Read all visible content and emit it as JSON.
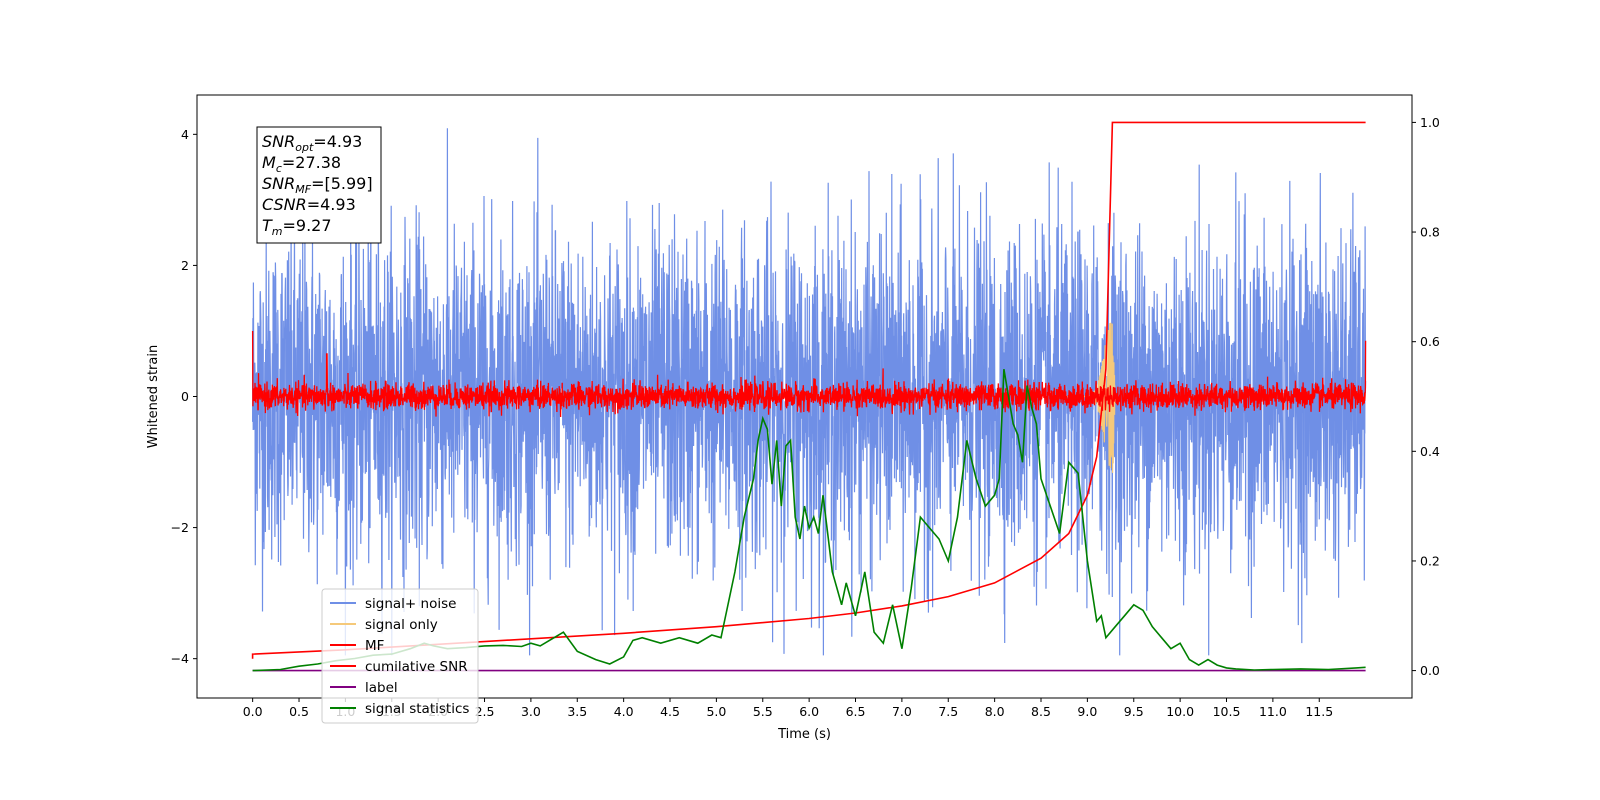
{
  "chart_data": {
    "type": "line",
    "xlabel": "Time (s)",
    "ylabel": "Whitened strain",
    "xlim": [
      -0.6,
      12.5
    ],
    "ylim": [
      -4.6,
      4.6
    ],
    "y2lim": [
      -0.05,
      1.05
    ],
    "xticks": [
      "0.0",
      "0.5",
      "1.0",
      "1.5",
      "2.0",
      "2.5",
      "3.0",
      "3.5",
      "4.0",
      "4.5",
      "5.0",
      "5.5",
      "6.0",
      "6.5",
      "7.0",
      "7.5",
      "8.0",
      "8.5",
      "9.0",
      "9.5",
      "10.0",
      "10.5",
      "11.0",
      "11.5"
    ],
    "yticks": [
      "−4",
      "−2",
      "0",
      "2",
      "4"
    ],
    "y2ticks": [
      "0.0",
      "0.2",
      "0.4",
      "0.6",
      "0.8",
      "1.0"
    ],
    "annotation": [
      {
        "base": "SNR",
        "sub": "opt",
        "rest": "=4.93"
      },
      {
        "base": "M",
        "sub": "c",
        "rest": "=27.38"
      },
      {
        "base": "SNR",
        "sub": "MF",
        "rest": "=[5.99]"
      },
      {
        "base": "CSNR",
        "sub": "",
        "rest": "=4.93"
      },
      {
        "base": "T",
        "sub": "m",
        "rest": "=9.27"
      }
    ],
    "legend_position": "lower-left",
    "series": [
      {
        "name": "signal+ noise",
        "axis": "left",
        "color": "#6f8fe6",
        "noise_std": 1.0,
        "x_range": [
          0,
          12
        ]
      },
      {
        "name": "signal only",
        "axis": "left",
        "color": "#f5c97a",
        "peak_time": 9.27,
        "peak_amplitude": 1.2
      },
      {
        "name": "MF",
        "axis": "left",
        "color": "#ff0000",
        "noise_std": 0.1,
        "x_range": [
          0,
          12
        ]
      },
      {
        "name": "cumilative SNR",
        "axis": "right",
        "color": "#ff0000",
        "x": [
          0,
          1,
          2,
          3,
          4,
          5,
          6,
          6.5,
          7,
          7.5,
          8,
          8.5,
          8.8,
          9.0,
          9.1,
          9.2,
          9.27,
          12
        ],
        "y": [
          0.03,
          0.038,
          0.048,
          0.058,
          0.068,
          0.08,
          0.095,
          0.105,
          0.118,
          0.135,
          0.16,
          0.205,
          0.25,
          0.32,
          0.39,
          0.55,
          1.0,
          1.0
        ]
      },
      {
        "name": "label",
        "axis": "right",
        "color": "#800080",
        "x": [
          0,
          12
        ],
        "y": [
          0.0,
          0.0
        ]
      },
      {
        "name": "signal statistics",
        "axis": "right",
        "color": "#008000",
        "x": [
          0,
          0.3,
          0.5,
          0.7,
          0.9,
          1.1,
          1.3,
          1.5,
          1.7,
          1.85,
          1.95,
          2.1,
          2.3,
          2.5,
          2.7,
          2.9,
          3.0,
          3.1,
          3.2,
          3.35,
          3.5,
          3.7,
          3.85,
          4.0,
          4.1,
          4.2,
          4.4,
          4.6,
          4.8,
          4.95,
          5.05,
          5.2,
          5.3,
          5.4,
          5.45,
          5.5,
          5.55,
          5.6,
          5.65,
          5.7,
          5.75,
          5.8,
          5.85,
          5.9,
          5.95,
          6.0,
          6.05,
          6.1,
          6.15,
          6.2,
          6.25,
          6.3,
          6.35,
          6.4,
          6.5,
          6.6,
          6.7,
          6.8,
          6.9,
          7.0,
          7.1,
          7.2,
          7.3,
          7.4,
          7.5,
          7.6,
          7.7,
          7.8,
          7.9,
          8.0,
          8.05,
          8.1,
          8.15,
          8.2,
          8.25,
          8.3,
          8.35,
          8.4,
          8.45,
          8.5,
          8.6,
          8.7,
          8.8,
          8.9,
          9.0,
          9.1,
          9.15,
          9.2,
          9.3,
          9.4,
          9.5,
          9.6,
          9.7,
          9.8,
          9.9,
          10.0,
          10.1,
          10.2,
          10.3,
          10.4,
          10.5,
          10.6,
          10.8,
          11.0,
          11.3,
          11.6,
          11.9,
          12.0
        ],
        "y": [
          0.0,
          0.002,
          0.008,
          0.012,
          0.018,
          0.022,
          0.028,
          0.03,
          0.04,
          0.05,
          0.045,
          0.04,
          0.042,
          0.045,
          0.046,
          0.044,
          0.05,
          0.045,
          0.055,
          0.07,
          0.035,
          0.02,
          0.012,
          0.025,
          0.055,
          0.06,
          0.05,
          0.06,
          0.05,
          0.065,
          0.06,
          0.18,
          0.28,
          0.35,
          0.42,
          0.46,
          0.44,
          0.34,
          0.42,
          0.3,
          0.41,
          0.42,
          0.28,
          0.24,
          0.3,
          0.26,
          0.28,
          0.25,
          0.32,
          0.25,
          0.18,
          0.15,
          0.12,
          0.16,
          0.1,
          0.18,
          0.07,
          0.05,
          0.12,
          0.04,
          0.15,
          0.28,
          0.26,
          0.24,
          0.2,
          0.28,
          0.42,
          0.35,
          0.3,
          0.32,
          0.35,
          0.55,
          0.5,
          0.45,
          0.43,
          0.38,
          0.52,
          0.48,
          0.45,
          0.35,
          0.3,
          0.25,
          0.38,
          0.36,
          0.2,
          0.09,
          0.1,
          0.06,
          0.08,
          0.1,
          0.12,
          0.11,
          0.08,
          0.06,
          0.04,
          0.05,
          0.02,
          0.01,
          0.02,
          0.01,
          0.005,
          0.003,
          0.001,
          0.002,
          0.003,
          0.002,
          0.005,
          0.006
        ]
      }
    ]
  }
}
